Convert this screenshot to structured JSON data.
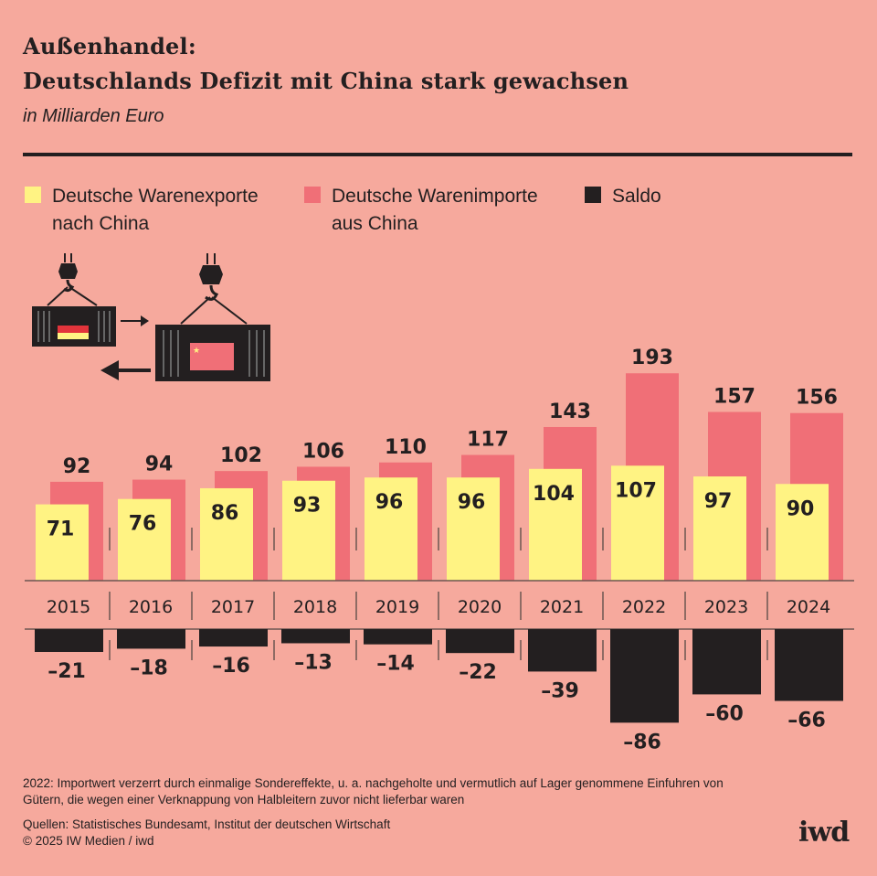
{
  "header": {
    "title_line1": "Außenhandel:",
    "title_line2": "Deutschlands Defizit mit China stark gewachsen",
    "subtitle": "in Milliarden Euro"
  },
  "legend": [
    {
      "line1": "Deutsche Warenexporte",
      "line2": "nach China",
      "color": "#fff383"
    },
    {
      "line1": "Deutsche Warenimporte",
      "line2": "aus China",
      "color": "#f06f77"
    },
    {
      "line1": "Saldo",
      "line2": "",
      "color": "#231f20"
    }
  ],
  "chart_data": {
    "type": "bar",
    "title": "Deutschlands Defizit mit China stark gewachsen",
    "ylabel": "in Milliarden Euro",
    "categories": [
      "2015",
      "2016",
      "2017",
      "2018",
      "2019",
      "2020",
      "2021",
      "2022",
      "2023",
      "2024"
    ],
    "series": [
      {
        "name": "Deutsche Warenexporte nach China",
        "color": "#fff383",
        "values": [
          71,
          76,
          86,
          93,
          96,
          96,
          104,
          107,
          97,
          90
        ]
      },
      {
        "name": "Deutsche Warenimporte aus China",
        "color": "#f06f77",
        "values": [
          92,
          94,
          102,
          106,
          110,
          117,
          143,
          193,
          157,
          156
        ]
      },
      {
        "name": "Saldo",
        "color": "#231f20",
        "values": [
          -21,
          -18,
          -16,
          -13,
          -14,
          -22,
          -39,
          -86,
          -60,
          -66
        ]
      }
    ],
    "value_labels": {
      "exports": [
        "71",
        "76",
        "86",
        "93",
        "96",
        "96",
        "104",
        "107",
        "97",
        "90"
      ],
      "imports": [
        "92",
        "94",
        "102",
        "106",
        "110",
        "117",
        "143",
        "193",
        "157",
        "156"
      ],
      "saldo": [
        "–21",
        "–18",
        "–16",
        "–13",
        "–14",
        "–22",
        "–39",
        "–86",
        "–60",
        "–66"
      ]
    },
    "ylim": [
      -90,
      200
    ],
    "grid": false
  },
  "footer": {
    "note_line1": "2022: Importwert verzerrt durch einmalige Sondereffekte, u. a. nachgeholte und vermutlich auf Lager genommene Einfuhren von",
    "note_line2": "Gütern, die wegen einer Verknappung von Halbleitern zuvor nicht lieferbar waren",
    "sources": "Quellen: Statistisches Bundesamt, Institut der deutschen Wirtschaft",
    "copyright": "© 2025 IW Medien / iwd",
    "logo": "iwd"
  },
  "illustration": {
    "icon": "shipping-containers-germany-china-icon"
  }
}
